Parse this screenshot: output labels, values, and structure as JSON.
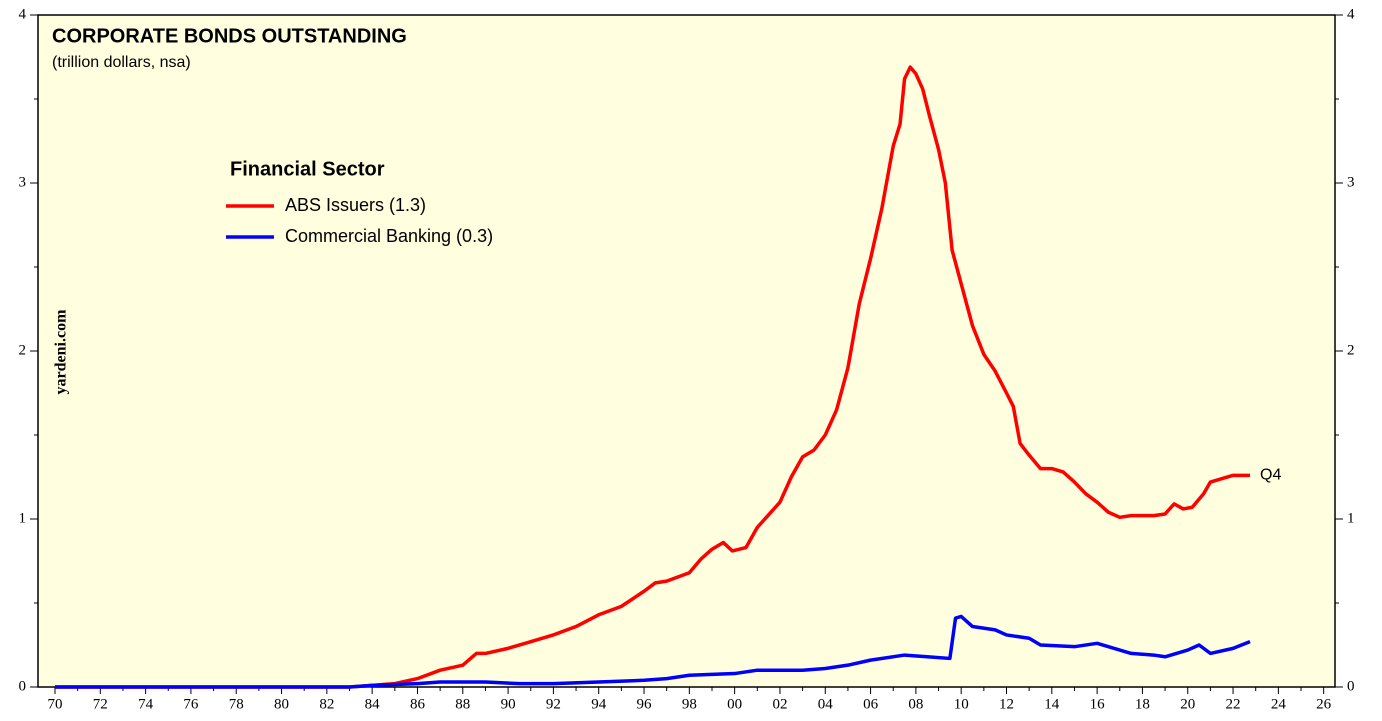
{
  "chart_data": {
    "type": "line",
    "title": "CORPORATE BONDS OUTSTANDING",
    "subtitle": "(trillion dollars, nsa)",
    "legend_title": "Financial Sector",
    "watermark": "yardeni.com",
    "annotation": {
      "text": "Q4",
      "x": 2022.75,
      "y": 1.26,
      "color": "#ff0000"
    },
    "background": "#ffffe0",
    "xlim": [
      1969.25,
      2026.5
    ],
    "ylim": [
      0,
      4
    ],
    "yticks": [
      0,
      1,
      2,
      3,
      4
    ],
    "yminorticks": [
      0.5,
      1.5,
      2.5,
      3.5
    ],
    "xticks": [
      {
        "value": 1970,
        "label": "70"
      },
      {
        "value": 1972,
        "label": "72"
      },
      {
        "value": 1974,
        "label": "74"
      },
      {
        "value": 1976,
        "label": "76"
      },
      {
        "value": 1978,
        "label": "78"
      },
      {
        "value": 1980,
        "label": "80"
      },
      {
        "value": 1982,
        "label": "82"
      },
      {
        "value": 1984,
        "label": "84"
      },
      {
        "value": 1986,
        "label": "86"
      },
      {
        "value": 1988,
        "label": "88"
      },
      {
        "value": 1990,
        "label": "90"
      },
      {
        "value": 1992,
        "label": "92"
      },
      {
        "value": 1994,
        "label": "94"
      },
      {
        "value": 1996,
        "label": "96"
      },
      {
        "value": 1998,
        "label": "98"
      },
      {
        "value": 2000,
        "label": "00"
      },
      {
        "value": 2002,
        "label": "02"
      },
      {
        "value": 2004,
        "label": "04"
      },
      {
        "value": 2006,
        "label": "06"
      },
      {
        "value": 2008,
        "label": "08"
      },
      {
        "value": 2010,
        "label": "10"
      },
      {
        "value": 2012,
        "label": "12"
      },
      {
        "value": 2014,
        "label": "14"
      },
      {
        "value": 2016,
        "label": "16"
      },
      {
        "value": 2018,
        "label": "18"
      },
      {
        "value": 2020,
        "label": "20"
      },
      {
        "value": 2022,
        "label": "22"
      },
      {
        "value": 2024,
        "label": "24"
      },
      {
        "value": 2026,
        "label": "26"
      }
    ],
    "xminorticks": [
      1971,
      1973,
      1975,
      1977,
      1979,
      1981,
      1983,
      1985,
      1987,
      1989,
      1991,
      1993,
      1995,
      1997,
      1999,
      2001,
      2003,
      2005,
      2007,
      2009,
      2011,
      2013,
      2015,
      2017,
      2019,
      2021,
      2023,
      2025
    ],
    "series": [
      {
        "name": "ABS Issuers (1.3)",
        "color": "#ff0000",
        "x": [
          1970,
          1983,
          1984,
          1985,
          1986,
          1987,
          1988,
          1988.6,
          1989,
          1990,
          1991,
          1992,
          1993,
          1994,
          1995,
          1996,
          1996.5,
          1997,
          1998,
          1998.5,
          1999,
          1999.5,
          1999.9,
          2000.5,
          2001,
          2002,
          2002.5,
          2003,
          2003.5,
          2004,
          2004.5,
          2005,
          2005.5,
          2006,
          2006.5,
          2007,
          2007.3,
          2007.5,
          2007.75,
          2008,
          2008.3,
          2008.6,
          2009,
          2009.3,
          2009.6,
          2010,
          2010.5,
          2011,
          2011.5,
          2012,
          2012.3,
          2012.6,
          2013,
          2013.5,
          2014,
          2014.5,
          2015,
          2015.5,
          2016,
          2016.5,
          2017,
          2017.5,
          2018,
          2018.5,
          2019,
          2019.4,
          2019.8,
          2020.2,
          2020.7,
          2021,
          2021.5,
          2022,
          2022.75
        ],
        "values": [
          0,
          0,
          0.01,
          0.02,
          0.05,
          0.1,
          0.13,
          0.2,
          0.2,
          0.23,
          0.27,
          0.31,
          0.36,
          0.43,
          0.48,
          0.57,
          0.62,
          0.63,
          0.68,
          0.76,
          0.82,
          0.86,
          0.81,
          0.83,
          0.95,
          1.1,
          1.25,
          1.37,
          1.41,
          1.5,
          1.65,
          1.9,
          2.28,
          2.55,
          2.85,
          3.22,
          3.35,
          3.62,
          3.69,
          3.65,
          3.56,
          3.4,
          3.2,
          3.0,
          2.6,
          2.4,
          2.15,
          1.98,
          1.88,
          1.75,
          1.67,
          1.45,
          1.38,
          1.3,
          1.3,
          1.28,
          1.22,
          1.15,
          1.1,
          1.04,
          1.01,
          1.02,
          1.02,
          1.02,
          1.03,
          1.09,
          1.06,
          1.07,
          1.15,
          1.22,
          1.24,
          1.26,
          1.26
        ]
      },
      {
        "name": "Commercial Banking (0.3)",
        "color": "#0000ff",
        "x": [
          1970,
          1983,
          1984,
          1986,
          1987,
          1989,
          1990.5,
          1992,
          1994,
          1996,
          1997,
          1998,
          2000,
          2001,
          2003,
          2004,
          2005,
          2006,
          2007.5,
          2008.5,
          2009.5,
          2009.75,
          2010,
          2010.5,
          2011.5,
          2012,
          2013,
          2013.5,
          2015,
          2016,
          2017,
          2017.5,
          2018.5,
          2019,
          2020,
          2020.5,
          2021,
          2022,
          2022.75
        ],
        "values": [
          0,
          0,
          0.01,
          0.02,
          0.03,
          0.03,
          0.02,
          0.02,
          0.03,
          0.04,
          0.05,
          0.07,
          0.08,
          0.1,
          0.1,
          0.11,
          0.13,
          0.16,
          0.19,
          0.18,
          0.17,
          0.41,
          0.42,
          0.36,
          0.34,
          0.31,
          0.29,
          0.25,
          0.24,
          0.26,
          0.22,
          0.2,
          0.19,
          0.18,
          0.22,
          0.25,
          0.2,
          0.23,
          0.27
        ]
      }
    ]
  }
}
